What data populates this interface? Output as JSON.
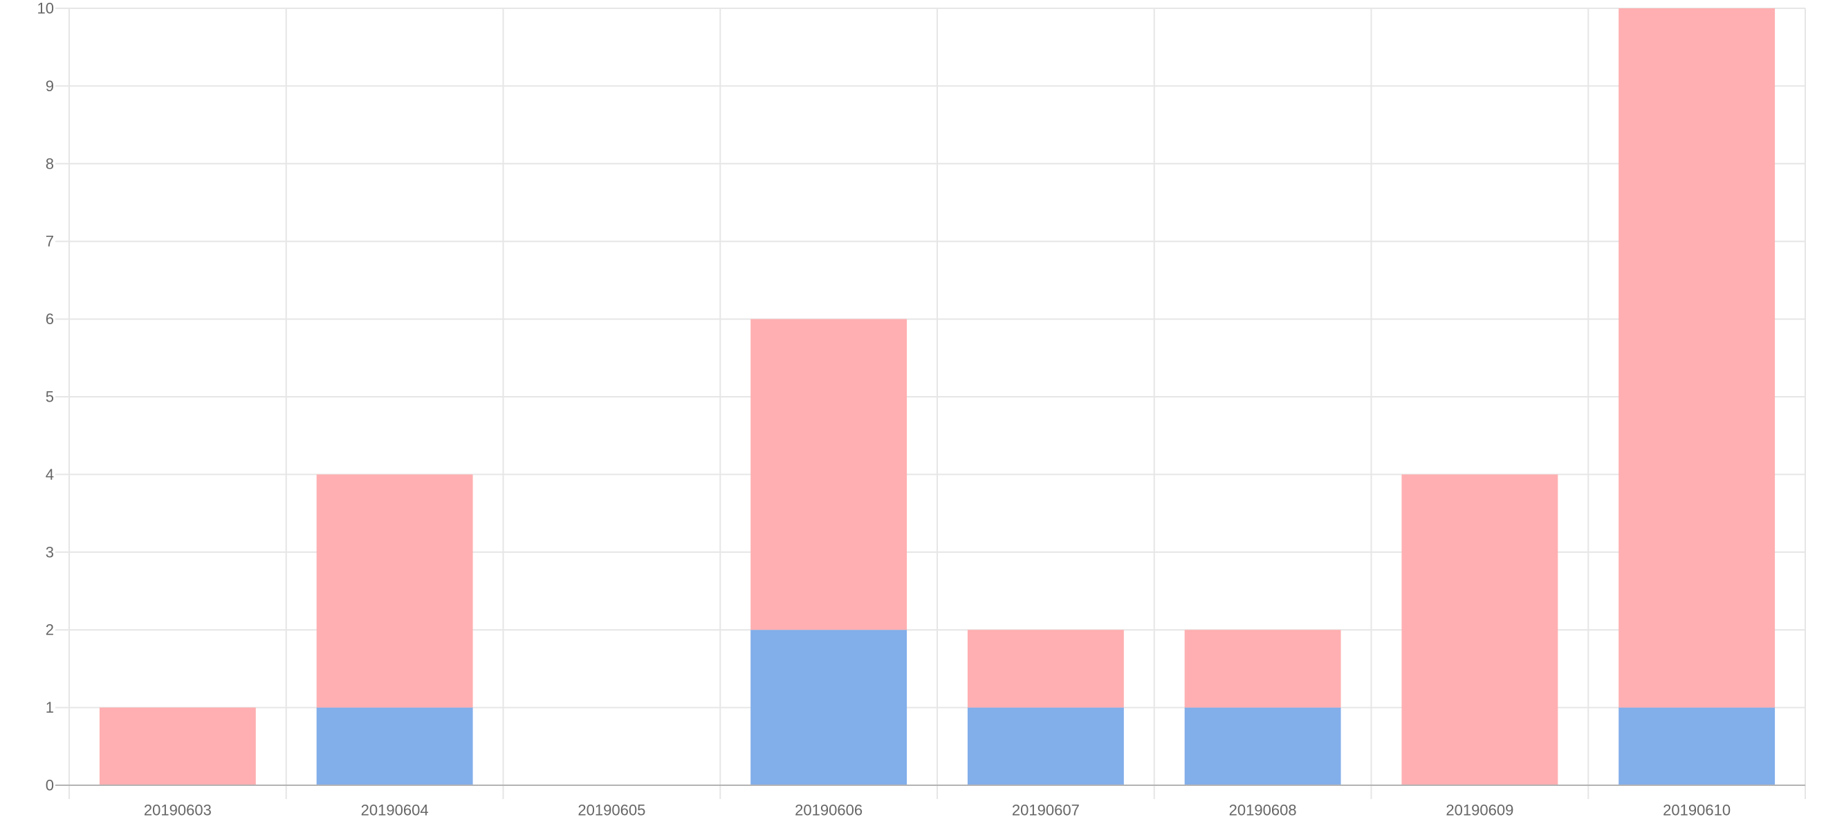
{
  "chart_data": {
    "type": "bar",
    "stacked": true,
    "title": "",
    "xlabel": "",
    "ylabel": "",
    "categories": [
      "20190603",
      "20190604",
      "20190605",
      "20190606",
      "20190607",
      "20190608",
      "20190609",
      "20190610"
    ],
    "series": [
      {
        "values": [
          0,
          1,
          0,
          2,
          1,
          1,
          0,
          1
        ],
        "color": "#82aeea"
      },
      {
        "values": [
          1,
          3,
          0,
          4,
          1,
          1,
          4,
          9
        ],
        "color": "#ffafb1"
      }
    ],
    "ylim": [
      0,
      10
    ],
    "yticks": [
      "0",
      "1",
      "2",
      "3",
      "4",
      "5",
      "6",
      "7",
      "8",
      "9",
      "10"
    ],
    "grid": true,
    "legend": "none",
    "gridColor": "#e6e6e6",
    "axisColor": "#b3b3b3"
  }
}
